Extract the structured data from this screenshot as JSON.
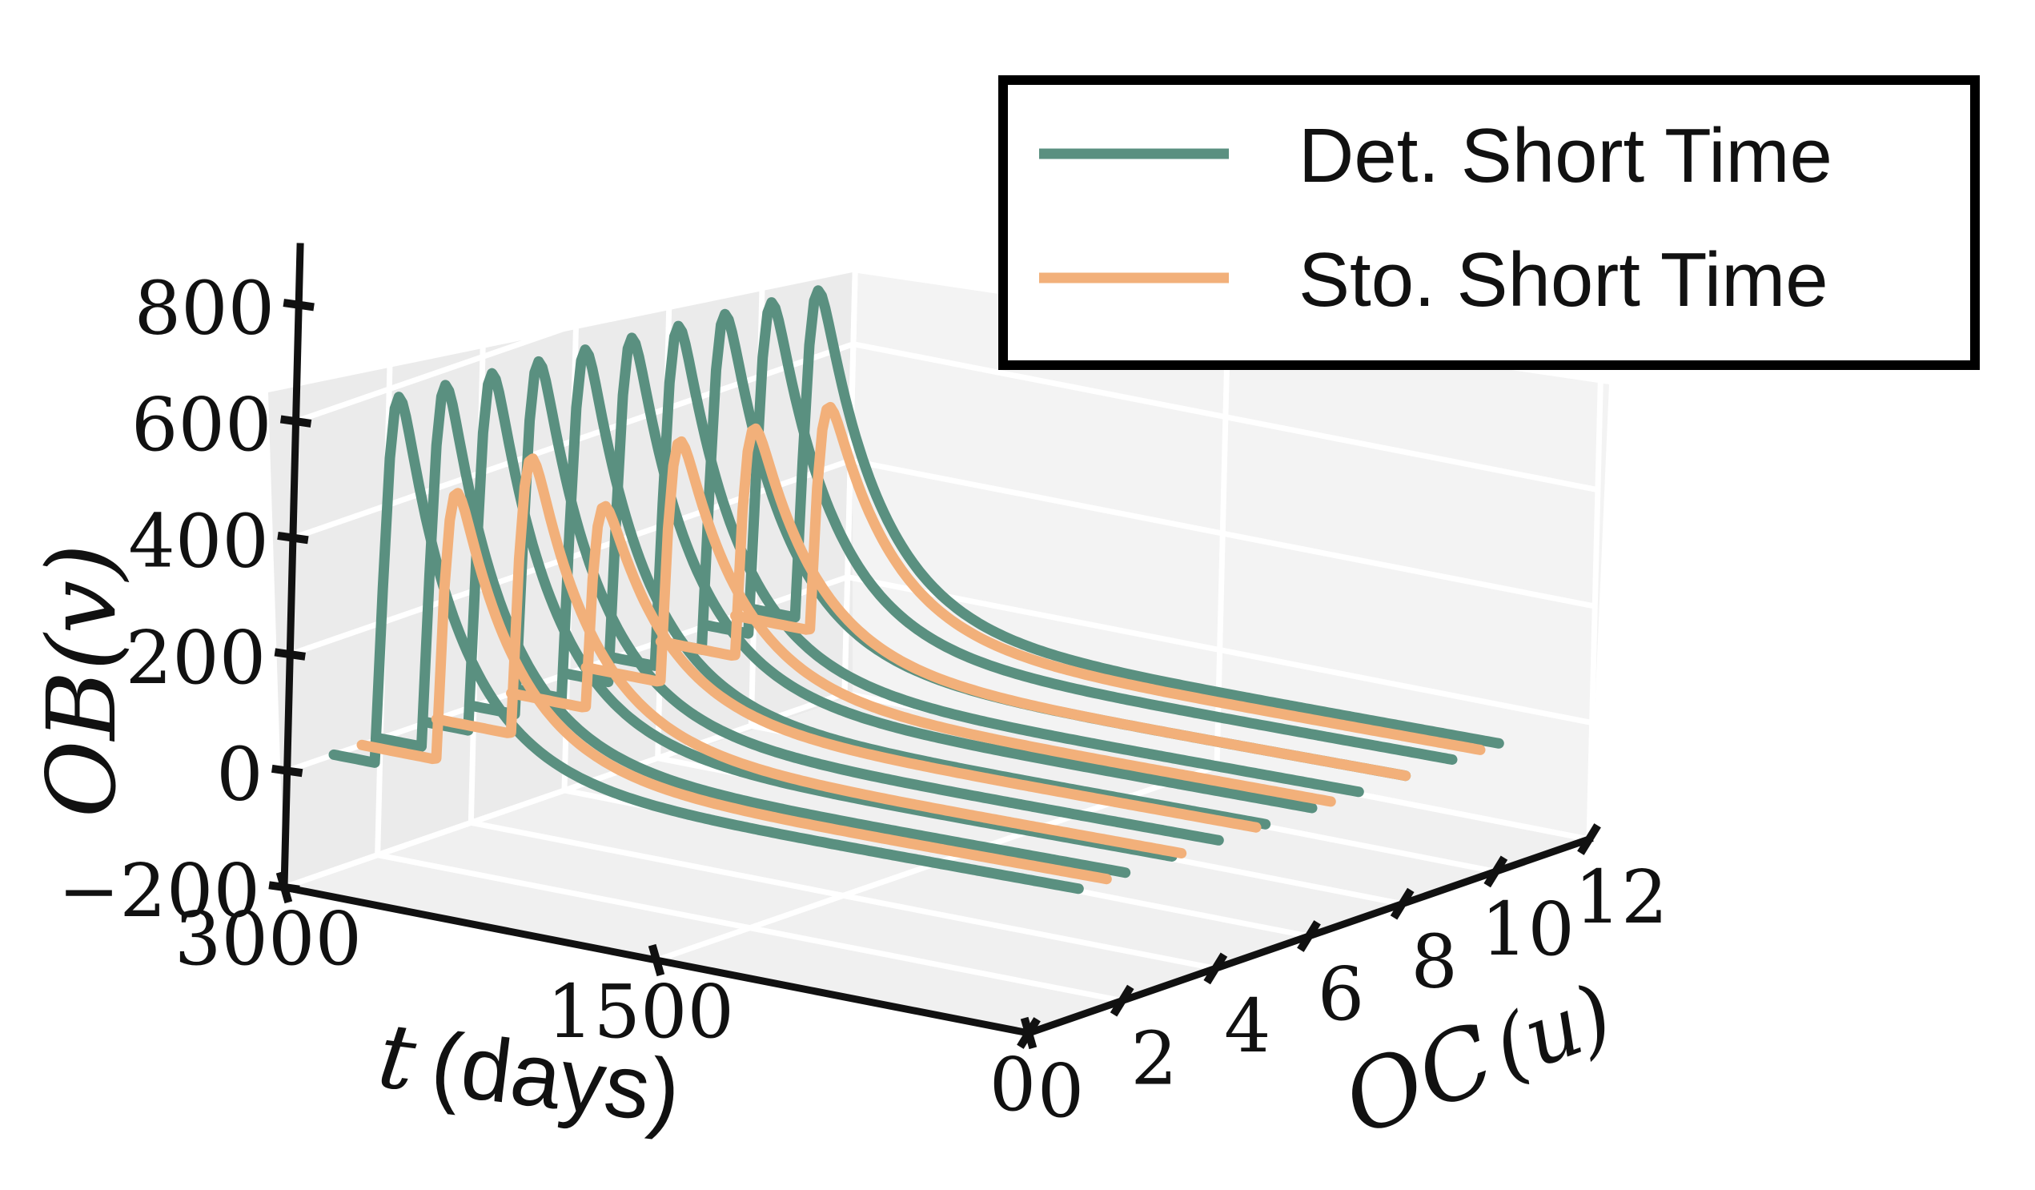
{
  "chart_data": {
    "type": "line",
    "projection": "3d",
    "xlabel": "t (days)",
    "ylabel": "OC(u)",
    "zlabel": "OB(v)",
    "xlabel_parts": {
      "var": "t",
      "unit": "(days)"
    },
    "ylabel_parts": {
      "main": "OC",
      "arg": "(u)"
    },
    "zlabel_parts": {
      "main": "OB",
      "arg": "(v)"
    },
    "xlim": [
      0,
      3000
    ],
    "ylim": [
      0,
      12
    ],
    "zlim": [
      -200,
      900
    ],
    "x_ticks": [
      0,
      1500,
      3000
    ],
    "x_tick_labels": [
      "0",
      "1500",
      "3000"
    ],
    "y_ticks": [
      0,
      2,
      4,
      6,
      8,
      10,
      12
    ],
    "y_tick_labels": [
      "0",
      "2",
      "4",
      "6",
      "8",
      "10",
      "12"
    ],
    "z_ticks": [
      -200,
      0,
      200,
      400,
      600,
      800
    ],
    "z_tick_labels": [
      "−200",
      "0",
      "200",
      "400",
      "600",
      "800"
    ],
    "grid": true,
    "legend_position": "top-right",
    "series": [
      {
        "name": "Det. Short Time",
        "color": "#5a9080",
        "curves": [
          {
            "oc": 1.0,
            "peak": 850
          },
          {
            "oc": 2.0,
            "peak": 840
          },
          {
            "oc": 3.0,
            "peak": 830
          },
          {
            "oc": 4.0,
            "peak": 820
          },
          {
            "oc": 5.0,
            "peak": 810
          },
          {
            "oc": 6.0,
            "peak": 800
          },
          {
            "oc": 7.0,
            "peak": 790
          },
          {
            "oc": 8.0,
            "peak": 780
          },
          {
            "oc": 9.0,
            "peak": 770
          },
          {
            "oc": 10.0,
            "peak": 760
          }
        ]
      },
      {
        "name": "Sto. Short Time",
        "color": "#f2b07a",
        "curves": [
          {
            "oc": 1.6,
            "peak": 620
          },
          {
            "oc": 3.2,
            "peak": 640
          },
          {
            "oc": 4.8,
            "peak": 470
          },
          {
            "oc": 6.4,
            "peak": 560
          },
          {
            "oc": 8.0,
            "peak": 530
          },
          {
            "oc": 9.6,
            "peak": 520
          }
        ]
      }
    ]
  }
}
